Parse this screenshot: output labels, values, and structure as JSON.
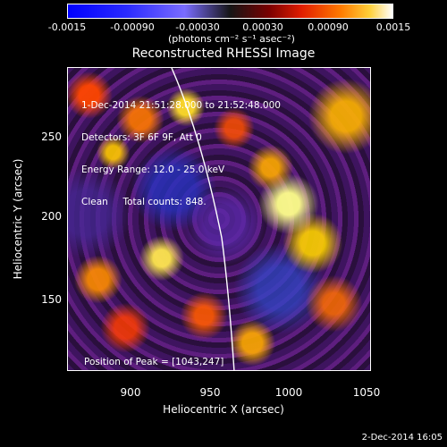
{
  "colorbar": {
    "ticks": [
      "-0.0015",
      "-0.00090",
      "-0.00030",
      "0.00030",
      "0.00090",
      "0.0015"
    ],
    "unit": "(photons cm⁻² s⁻¹ asec⁻²)"
  },
  "title": "Reconstructed RHESSI Image",
  "info": {
    "time": "1-Dec-2014 21:51:28.000 to 21:52:48.000",
    "detectors": "Detectors: 3F 6F 9F, Att 0",
    "energy": "Energy Range: 12.0 - 25.0 keV",
    "clean": "Clean     Total counts: 848."
  },
  "peak": "Position of Peak = [1043,247]",
  "axes": {
    "xlabel": "Heliocentric X (arcsec)",
    "ylabel": "Heliocentric Y (arcsec)",
    "xticks": [
      "900",
      "950",
      "1000",
      "1050"
    ],
    "yticks": [
      "250",
      "200",
      "150"
    ]
  },
  "footer": "2-Dec-2014 16:05"
}
